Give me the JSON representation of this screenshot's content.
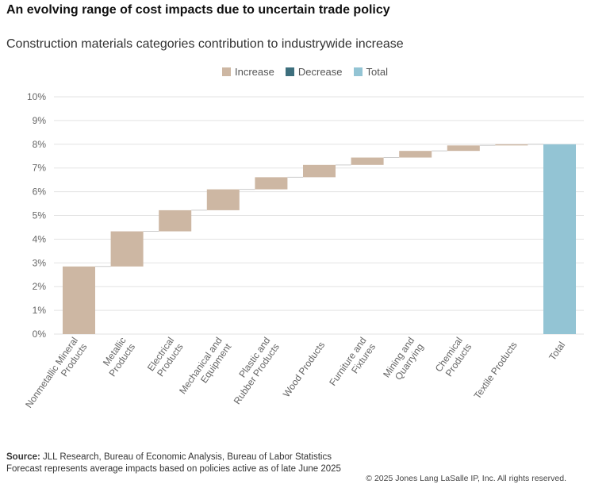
{
  "title": "An evolving range of cost impacts due to uncertain trade policy",
  "chart_data": {
    "type": "waterfall",
    "title": "Construction materials categories contribution to industrywide increase",
    "legend": [
      {
        "name": "Increase",
        "color": "#cdb7a3"
      },
      {
        "name": "Decrease",
        "color": "#3d6f7d"
      },
      {
        "name": "Total",
        "color": "#93c4d4"
      }
    ],
    "legend_position": "top",
    "categories": [
      "Nonmetallic Mineral Products",
      "Metallic Products",
      "Electrical Products",
      "Mechanical and Equipment",
      "Plastic and Rubber Products",
      "Wood Products",
      "Furniture and Fixtures",
      "Mining and Quarrying",
      "Chemical Products",
      "Textile Products",
      "Total"
    ],
    "increments": [
      2.85,
      1.48,
      0.89,
      0.88,
      0.51,
      0.52,
      0.31,
      0.28,
      0.23,
      0.05
    ],
    "total": 8.0,
    "ylim": [
      0,
      10
    ],
    "yticks": [
      "0%",
      "1%",
      "2%",
      "3%",
      "4%",
      "5%",
      "6%",
      "7%",
      "8%",
      "9%",
      "10%"
    ],
    "grid": true
  },
  "footer": {
    "source_label": "Source:",
    "source_text": " JLL Research, Bureau of Economic Analysis, Bureau of Labor Statistics",
    "note": "Forecast represents average impacts based on policies active as of late June 2025",
    "copyright": "© 2025 Jones Lang LaSalle IP, Inc. All rights reserved."
  }
}
